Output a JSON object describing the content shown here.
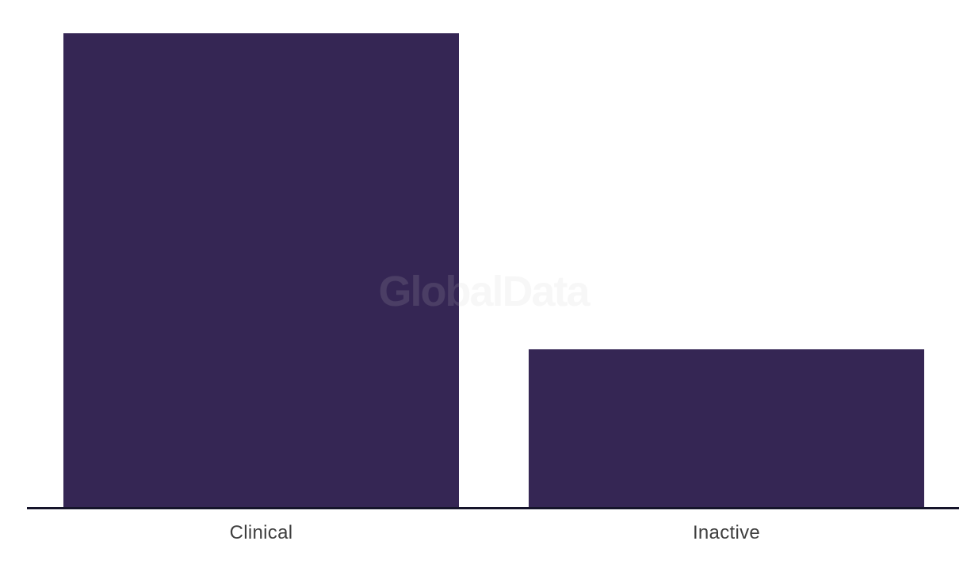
{
  "chart_data": {
    "type": "bar",
    "categories": [
      "Clinical",
      "Inactive"
    ],
    "values": [
      3,
      1
    ],
    "title": "",
    "xlabel": "",
    "ylabel": "",
    "ylim": [
      0,
      3.2
    ],
    "grid": false,
    "legend": false,
    "bar_color": "#352654"
  },
  "watermark": {
    "text": "GlobalData",
    "color": "#c8c8c8",
    "opacity": 0.15
  },
  "colors": {
    "bar": "#352654",
    "axis_line": "#15142a",
    "tick_label": "#3e3e3e"
  }
}
